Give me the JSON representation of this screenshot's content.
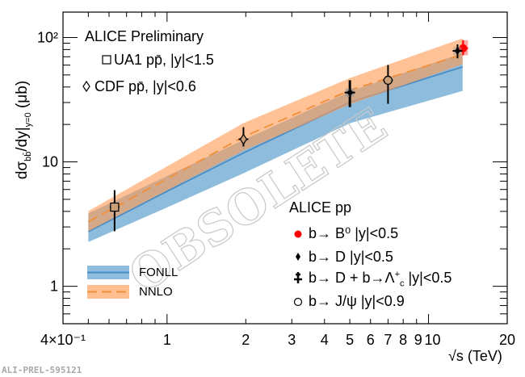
{
  "chart_data": {
    "type": "scatter",
    "title": "ALICE Preliminary",
    "xlabel": "√s (TeV)",
    "ylabel_parts": {
      "main": "dσ",
      "sub1": "bb̄",
      "mid": "/dy|",
      "sub2": "y=0",
      "unit": " (μb)"
    },
    "xscale": "log",
    "yscale": "log",
    "xlim": [
      0.4,
      20
    ],
    "ylim": [
      0.5,
      160
    ],
    "x_ticks": [
      {
        "v": 0.4,
        "label": "4×10⁻¹"
      },
      {
        "v": 1,
        "label": "1"
      },
      {
        "v": 2,
        "label": "2"
      },
      {
        "v": 3,
        "label": "3"
      },
      {
        "v": 4,
        "label": "4"
      },
      {
        "v": 5,
        "label": "5"
      },
      {
        "v": 6,
        "label": "6"
      },
      {
        "v": 7,
        "label": "7"
      },
      {
        "v": 8,
        "label": "8"
      },
      {
        "v": 9,
        "label": "9"
      },
      {
        "v": 10,
        "label": "10"
      },
      {
        "v": 20,
        "label": "20"
      }
    ],
    "y_ticks": [
      {
        "v": 1,
        "label": "1"
      },
      {
        "v": 10,
        "label": "10"
      },
      {
        "v": 100,
        "label": "10²"
      }
    ],
    "bands": [
      {
        "name": "FONLL",
        "color": "#8dbcdc",
        "line_color": "#4a8cc4",
        "dashed": false,
        "x": [
          0.5,
          1,
          1.96,
          5.02,
          13.5
        ],
        "central": [
          2.75,
          5.8,
          11.8,
          30.2,
          58
        ],
        "low": [
          2.27,
          4.3,
          8.1,
          20.5,
          37.2
        ],
        "high": [
          3.85,
          7.7,
          15,
          37,
          75
        ]
      },
      {
        "name": "NNLO",
        "color": "#ff9d55",
        "line_color": "#f0903a",
        "dashed": true,
        "x": [
          0.5,
          1,
          1.96,
          5.02,
          13.5
        ],
        "central": [
          3.3,
          7.3,
          15.9,
          37.8,
          73
        ],
        "low": [
          2.77,
          5.9,
          12.3,
          29,
          61
        ],
        "high": [
          4.02,
          9.2,
          20.5,
          47.3,
          98.5
        ]
      }
    ],
    "series": [
      {
        "name": "UA1 pp̄, |y|<1.5",
        "marker": "open-square",
        "color": "#000000",
        "points": [
          {
            "x": 0.63,
            "y": 4.33,
            "ylo": 2.77,
            "yhi": 5.93
          }
        ]
      },
      {
        "name": "CDF pp̄, |y|<0.6",
        "marker": "open-diamond",
        "color": "#000000",
        "points": [
          {
            "x": 1.96,
            "y": 15.2,
            "ylo": 13.3,
            "yhi": 19.0
          }
        ]
      },
      {
        "name": "b→ B⁰ |y|<0.5",
        "marker": "filled-circle",
        "color": "#ff0000",
        "points": [
          {
            "x": 13,
            "y": 82,
            "ylo": 72,
            "yhi": 95
          }
        ]
      },
      {
        "name": "b→ D |y|<0.5",
        "marker": "filled-diamond",
        "color": "#000000",
        "points": [
          {
            "x": 5.02,
            "y": 36.1,
            "ylo": 27.6,
            "yhi": 45.3
          },
          {
            "x": 13,
            "y": 78,
            "ylo": 68,
            "yhi": 88
          }
        ]
      },
      {
        "name": "b→ D + b→Λc⁺ |y|<0.5",
        "marker": "filled-cross",
        "color": "#000000",
        "points": [
          {
            "x": 5.02,
            "y": 36.1,
            "ylo": 27.6,
            "yhi": 45.3
          }
        ]
      },
      {
        "name": "b→ J/ψ |y|<0.9",
        "marker": "open-circle",
        "color": "#000000",
        "points": [
          {
            "x": 7,
            "y": 45.3,
            "ylo": 29.3,
            "yhi": 60.1
          }
        ]
      }
    ]
  },
  "legend_top": {
    "title": "ALICE Preliminary",
    "ua1": "UA1 pp̄, |y|<1.5",
    "cdf": "CDF pp̄, |y|<0.6"
  },
  "legend_bottom": {
    "title": "ALICE pp",
    "b0": "b→ B⁰ |y|<0.5",
    "d": "b→ D |y|<0.5",
    "dl_main": "b→ D + b→Λ",
    "dl_sup": "+",
    "dl_sub": "c",
    "dl_tail": " |y|<0.5",
    "jpsi": "b→ J/ψ |y|<0.9"
  },
  "legend_models": {
    "fonll": "FONLL",
    "nnlo": "NNLO"
  },
  "watermark": "OBSOLETE",
  "preliminary_id": "ALI-PREL-595121"
}
